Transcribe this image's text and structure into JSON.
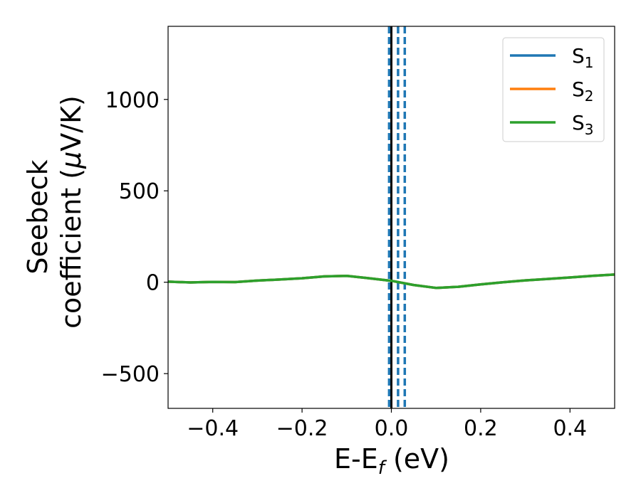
{
  "chart_data": {
    "type": "line",
    "xlabel": "E-E",
    "xlabel_sub": "f",
    "xlabel_unit": " (eV)",
    "ylabel_line1": "Seebeck",
    "ylabel_line2": "coefficient  (",
    "ylabel_mu": "μ",
    "ylabel_unit": "V/K)",
    "xlim": [
      -0.5,
      0.5
    ],
    "ylim": [
      -690,
      1400
    ],
    "xticks": [
      -0.4,
      -0.2,
      0.0,
      0.2,
      0.4
    ],
    "xtick_labels": [
      "−0.4",
      "−0.2",
      "0.0",
      "0.2",
      "0.4"
    ],
    "yticks": [
      -500,
      0,
      500,
      1000
    ],
    "ytick_labels": [
      "−500",
      "0",
      "500",
      "1000"
    ],
    "grid": false,
    "legend_position": "top-right",
    "series": [
      {
        "name": "S",
        "sub": "1",
        "color": "#1f77b4",
        "x": [
          -0.5,
          -0.45,
          -0.4,
          -0.35,
          -0.3,
          -0.25,
          -0.2,
          -0.15,
          -0.1,
          -0.05,
          0.0,
          0.05,
          0.1,
          0.15,
          0.2,
          0.25,
          0.3,
          0.35,
          0.4,
          0.45,
          0.5
        ],
        "y": [
          3,
          -1,
          2,
          1,
          9,
          15,
          22,
          32,
          35,
          22,
          8,
          -15,
          -31,
          -25,
          -12,
          0,
          10,
          18,
          26,
          35,
          42
        ]
      },
      {
        "name": "S",
        "sub": "2",
        "color": "#ff7f0e",
        "x": [
          -0.5,
          -0.45,
          -0.4,
          -0.35,
          -0.3,
          -0.25,
          -0.2,
          -0.15,
          -0.1,
          -0.05,
          0.0,
          0.05,
          0.1,
          0.15,
          0.2,
          0.25,
          0.3,
          0.35,
          0.4,
          0.45,
          0.5
        ],
        "y": [
          3,
          -1,
          2,
          1,
          9,
          15,
          22,
          32,
          35,
          22,
          8,
          -15,
          -31,
          -25,
          -12,
          0,
          10,
          18,
          26,
          35,
          42
        ]
      },
      {
        "name": "S",
        "sub": "3",
        "color": "#2ca02c",
        "x": [
          -0.5,
          -0.45,
          -0.4,
          -0.35,
          -0.3,
          -0.25,
          -0.2,
          -0.15,
          -0.1,
          -0.05,
          0.0,
          0.05,
          0.1,
          0.15,
          0.2,
          0.25,
          0.3,
          0.35,
          0.4,
          0.45,
          0.5
        ],
        "y": [
          3,
          -1,
          2,
          1,
          9,
          15,
          22,
          32,
          35,
          22,
          8,
          -15,
          -31,
          -25,
          -12,
          0,
          10,
          18,
          26,
          35,
          42
        ]
      }
    ],
    "vlines": [
      {
        "x": 0.0,
        "color": "#000000",
        "style": "solid"
      },
      {
        "x": -0.005,
        "color": "#1f77b4",
        "style": "dashed"
      },
      {
        "x": 0.015,
        "color": "#1f77b4",
        "style": "dashed"
      },
      {
        "x": 0.03,
        "color": "#1f77b4",
        "style": "dashed"
      }
    ]
  }
}
